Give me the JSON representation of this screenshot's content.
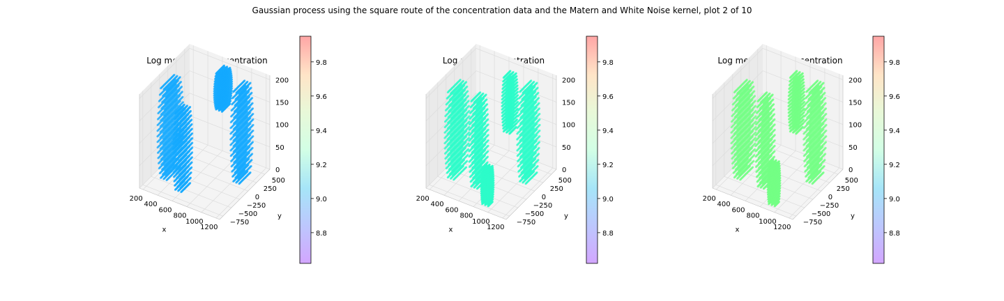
{
  "figure_title": "Gaussian process using the square route of the concentration data and the Matern and White Noise kernel, plot 2 of 10",
  "colors": {
    "panel_1_points": "#14aaff",
    "panel_2_points": "#2efcc9",
    "panel_3_points": "#74ff86",
    "pane_left": "#eaeaea",
    "pane_right": "#f2f2f2",
    "pane_floor": "#f4f4f4"
  },
  "chart_data": [
    {
      "type": "scatter",
      "title": "Log mean - 2σ concentration",
      "xlabel": "x",
      "ylabel": "y",
      "zlabel": "",
      "x_ticks": [
        "200",
        "400",
        "600",
        "800",
        "1000",
        "1200"
      ],
      "y_ticks": [
        "500",
        "250",
        "0",
        "−250",
        "−500",
        "−750"
      ],
      "z_ticks": [
        "0",
        "50",
        "100",
        "150",
        "200"
      ],
      "xlim": [
        150,
        1250
      ],
      "ylim": [
        -850,
        650
      ],
      "zlim": [
        0,
        210
      ],
      "value": 9.05,
      "colorbar": {
        "ticks": [
          "8.8",
          "9.0",
          "9.2",
          "9.4",
          "9.6",
          "9.8"
        ],
        "range": [
          8.62,
          9.95
        ]
      },
      "clusters": [
        {
          "xc": 300,
          "yc": -250,
          "yr": 300,
          "z0": 0,
          "z1": 200
        },
        {
          "xc": 560,
          "yc": -450,
          "yr": 200,
          "z0": 0,
          "z1": 170
        },
        {
          "xc": 700,
          "yc": 450,
          "yr": 180,
          "z0": 120,
          "z1": 200
        },
        {
          "xc": 1050,
          "yc": 250,
          "yr": 250,
          "z0": 0,
          "z1": 200
        }
      ]
    },
    {
      "type": "scatter",
      "title": "Log mean concentration",
      "xlabel": "x",
      "ylabel": "y",
      "zlabel": "",
      "x_ticks": [
        "200",
        "400",
        "600",
        "800",
        "1000",
        "1200"
      ],
      "y_ticks": [
        "500",
        "250",
        "0",
        "−250",
        "−500",
        "−750"
      ],
      "z_ticks": [
        "0",
        "50",
        "100",
        "150",
        "200"
      ],
      "xlim": [
        150,
        1250
      ],
      "ylim": [
        -850,
        650
      ],
      "zlim": [
        0,
        210
      ],
      "value": 9.3,
      "colorbar": {
        "ticks": [
          "8.8",
          "9.0",
          "9.2",
          "9.4",
          "9.6",
          "9.8"
        ],
        "range": [
          8.62,
          9.95
        ]
      },
      "clusters": [
        {
          "xc": 300,
          "yc": -250,
          "yr": 280,
          "z0": 0,
          "z1": 190
        },
        {
          "xc": 620,
          "yc": -300,
          "yr": 200,
          "z0": 0,
          "z1": 190
        },
        {
          "xc": 750,
          "yc": 350,
          "yr": 150,
          "z0": 80,
          "z1": 200
        },
        {
          "xc": 900,
          "yc": -650,
          "yr": 100,
          "z0": 0,
          "z1": 80
        },
        {
          "xc": 1050,
          "yc": 250,
          "yr": 250,
          "z0": 0,
          "z1": 200
        }
      ]
    },
    {
      "type": "scatter",
      "title": "Log mean + 2σ concentration",
      "xlabel": "x",
      "ylabel": "y",
      "zlabel": "",
      "x_ticks": [
        "200",
        "400",
        "600",
        "800",
        "1000",
        "1200"
      ],
      "y_ticks": [
        "500",
        "250",
        "0",
        "−250",
        "−500",
        "−750"
      ],
      "z_ticks": [
        "0",
        "50",
        "100",
        "150",
        "200"
      ],
      "xlim": [
        150,
        1250
      ],
      "ylim": [
        -850,
        650
      ],
      "zlim": [
        0,
        210
      ],
      "value": 9.55,
      "colorbar": {
        "ticks": [
          "8.8",
          "9.0",
          "9.2",
          "9.4",
          "9.6",
          "9.8"
        ],
        "range": [
          8.62,
          9.95
        ]
      },
      "clusters": [
        {
          "xc": 300,
          "yc": -250,
          "yr": 280,
          "z0": 0,
          "z1": 190
        },
        {
          "xc": 620,
          "yc": -300,
          "yr": 200,
          "z0": 0,
          "z1": 190
        },
        {
          "xc": 750,
          "yc": 350,
          "yr": 150,
          "z0": 80,
          "z1": 200
        },
        {
          "xc": 900,
          "yc": -650,
          "yr": 100,
          "z0": 0,
          "z1": 90
        },
        {
          "xc": 1050,
          "yc": 250,
          "yr": 250,
          "z0": 0,
          "z1": 200
        }
      ]
    }
  ]
}
